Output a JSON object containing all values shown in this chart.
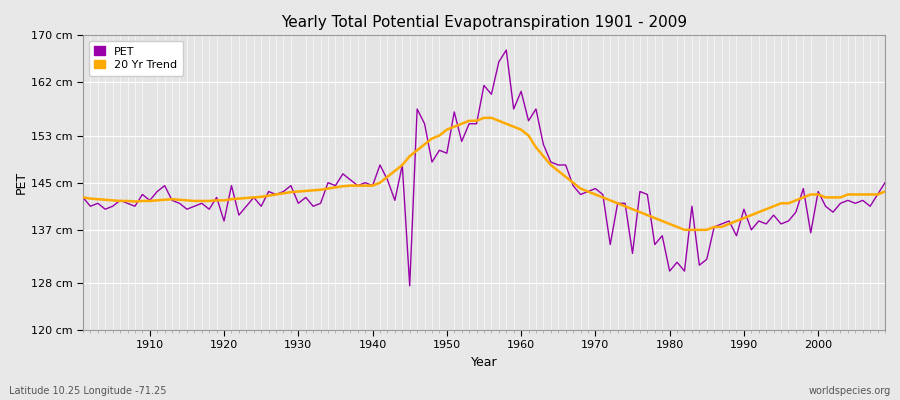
{
  "title": "Yearly Total Potential Evapotranspiration 1901 - 2009",
  "xlabel": "Year",
  "ylabel": "PET",
  "subtitle_left": "Latitude 10.25 Longitude -71.25",
  "subtitle_right": "worldspecies.org",
  "ylim": [
    120,
    170
  ],
  "yticks": [
    120,
    128,
    137,
    145,
    153,
    162,
    170
  ],
  "ytick_labels": [
    "120 cm",
    "128 cm",
    "137 cm",
    "145 cm",
    "153 cm",
    "162 cm",
    "170 cm"
  ],
  "xlim": [
    1901,
    2009
  ],
  "xticks": [
    1910,
    1920,
    1930,
    1940,
    1950,
    1960,
    1970,
    1980,
    1990,
    2000
  ],
  "fig_bg_color": "#e8e8e8",
  "plot_bg_color": "#e4e4e4",
  "grid_color": "#ffffff",
  "pet_color": "#9900aa",
  "trend_color": "#ffaa00",
  "pet_linewidth": 1.0,
  "trend_linewidth": 1.8,
  "legend_labels": [
    "PET",
    "20 Yr Trend"
  ],
  "years": [
    1901,
    1902,
    1903,
    1904,
    1905,
    1906,
    1907,
    1908,
    1909,
    1910,
    1911,
    1912,
    1913,
    1914,
    1915,
    1916,
    1917,
    1918,
    1919,
    1920,
    1921,
    1922,
    1923,
    1924,
    1925,
    1926,
    1927,
    1928,
    1929,
    1930,
    1931,
    1932,
    1933,
    1934,
    1935,
    1936,
    1937,
    1938,
    1939,
    1940,
    1941,
    1942,
    1943,
    1944,
    1945,
    1946,
    1947,
    1948,
    1949,
    1950,
    1951,
    1952,
    1953,
    1954,
    1955,
    1956,
    1957,
    1958,
    1959,
    1960,
    1961,
    1962,
    1963,
    1964,
    1965,
    1966,
    1967,
    1968,
    1969,
    1970,
    1971,
    1972,
    1973,
    1974,
    1975,
    1976,
    1977,
    1978,
    1979,
    1980,
    1981,
    1982,
    1983,
    1984,
    1985,
    1986,
    1987,
    1988,
    1989,
    1990,
    1991,
    1992,
    1993,
    1994,
    1995,
    1996,
    1997,
    1998,
    1999,
    2000,
    2001,
    2002,
    2003,
    2004,
    2005,
    2006,
    2007,
    2008,
    2009
  ],
  "pet_values": [
    142.5,
    141.0,
    141.5,
    140.5,
    141.0,
    142.0,
    141.5,
    141.0,
    143.0,
    142.0,
    143.5,
    144.5,
    142.0,
    141.5,
    140.5,
    141.0,
    141.5,
    140.5,
    142.5,
    138.5,
    144.5,
    139.5,
    141.0,
    142.5,
    141.0,
    143.5,
    143.0,
    143.5,
    144.5,
    141.5,
    142.5,
    141.0,
    141.5,
    145.0,
    144.5,
    146.5,
    145.5,
    144.5,
    145.0,
    144.5,
    148.0,
    145.5,
    142.0,
    148.0,
    127.5,
    157.5,
    155.0,
    148.5,
    150.5,
    150.0,
    157.0,
    152.0,
    155.0,
    155.0,
    161.5,
    160.0,
    165.5,
    167.5,
    157.5,
    160.5,
    155.5,
    157.5,
    151.5,
    148.5,
    148.0,
    148.0,
    144.5,
    143.0,
    143.5,
    144.0,
    143.0,
    134.5,
    141.5,
    141.5,
    133.0,
    143.5,
    143.0,
    134.5,
    136.0,
    130.0,
    131.5,
    130.0,
    141.0,
    131.0,
    132.0,
    137.5,
    138.0,
    138.5,
    136.0,
    140.5,
    137.0,
    138.5,
    138.0,
    139.5,
    138.0,
    138.5,
    140.0,
    144.0,
    136.5,
    143.5,
    141.0,
    140.0,
    141.5,
    142.0,
    141.5,
    142.0,
    141.0,
    143.0,
    145.0
  ],
  "trend_values": [
    142.5,
    142.3,
    142.2,
    142.1,
    142.0,
    141.9,
    141.9,
    141.8,
    141.9,
    141.9,
    142.0,
    142.1,
    142.2,
    142.1,
    142.0,
    141.9,
    141.9,
    141.9,
    142.0,
    142.0,
    142.2,
    142.3,
    142.4,
    142.5,
    142.6,
    142.8,
    143.0,
    143.2,
    143.4,
    143.5,
    143.6,
    143.7,
    143.8,
    144.0,
    144.2,
    144.4,
    144.5,
    144.5,
    144.5,
    144.5,
    145.0,
    146.0,
    147.0,
    148.0,
    149.5,
    150.5,
    151.5,
    152.5,
    153.0,
    154.0,
    154.5,
    155.0,
    155.5,
    155.5,
    156.0,
    156.0,
    155.5,
    155.0,
    154.5,
    154.0,
    153.0,
    151.0,
    149.5,
    148.0,
    147.0,
    146.0,
    145.0,
    144.0,
    143.5,
    143.0,
    142.5,
    142.0,
    141.5,
    141.0,
    140.5,
    140.0,
    139.5,
    139.0,
    138.5,
    138.0,
    137.5,
    137.0,
    137.0,
    137.0,
    137.0,
    137.5,
    137.5,
    138.0,
    138.5,
    139.0,
    139.5,
    140.0,
    140.5,
    141.0,
    141.5,
    141.5,
    142.0,
    142.5,
    143.0,
    143.0,
    142.5,
    142.5,
    142.5,
    143.0,
    143.0,
    143.0,
    143.0,
    143.0,
    143.5
  ]
}
